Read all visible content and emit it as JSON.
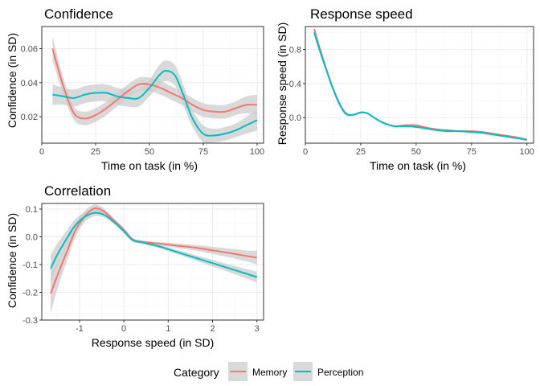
{
  "colors": {
    "memory": "#F8766D",
    "perception": "#00BFC4",
    "ribbon": "#cccccc"
  },
  "legend": {
    "title": "Category",
    "items": [
      {
        "label": "Memory",
        "color": "#F8766D"
      },
      {
        "label": "Perception",
        "color": "#00BFC4"
      }
    ],
    "position": "bottom"
  },
  "chart_data": [
    {
      "type": "line",
      "title": "Confidence",
      "xlabel": "Time on task (in %)",
      "ylabel": "Confidence (in SD)",
      "xlim": [
        0,
        103
      ],
      "ylim": [
        0.0045,
        0.073
      ],
      "xticks": [
        0,
        25,
        50,
        75,
        100
      ],
      "xtick_labels": [
        "0",
        "25",
        "50",
        "75",
        "100"
      ],
      "yticks": [
        0.02,
        0.04,
        0.06
      ],
      "ytick_labels": [
        "0.02",
        "0.04",
        "0.06"
      ],
      "grid": true,
      "series": [
        {
          "name": "Memory",
          "x": [
            5,
            10,
            15,
            20,
            25,
            30,
            35,
            40,
            45,
            50,
            55,
            60,
            65,
            70,
            75,
            80,
            85,
            90,
            95,
            100
          ],
          "y": [
            0.06,
            0.038,
            0.022,
            0.019,
            0.021,
            0.025,
            0.03,
            0.035,
            0.039,
            0.039,
            0.037,
            0.034,
            0.031,
            0.027,
            0.024,
            0.023,
            0.023,
            0.025,
            0.027,
            0.027
          ],
          "ci_half": [
            0.007,
            0.005,
            0.004,
            0.004,
            0.004,
            0.004,
            0.004,
            0.004,
            0.004,
            0.004,
            0.004,
            0.004,
            0.004,
            0.004,
            0.004,
            0.004,
            0.004,
            0.004,
            0.005,
            0.006
          ]
        },
        {
          "name": "Perception",
          "x": [
            5,
            10,
            15,
            20,
            25,
            30,
            35,
            40,
            45,
            50,
            55,
            58,
            62,
            66,
            70,
            75,
            80,
            85,
            90,
            95,
            100
          ],
          "y": [
            0.033,
            0.032,
            0.031,
            0.033,
            0.034,
            0.034,
            0.032,
            0.031,
            0.031,
            0.037,
            0.045,
            0.047,
            0.044,
            0.032,
            0.019,
            0.01,
            0.009,
            0.01,
            0.012,
            0.015,
            0.018
          ],
          "ci_half": [
            0.006,
            0.005,
            0.005,
            0.005,
            0.005,
            0.005,
            0.005,
            0.005,
            0.005,
            0.005,
            0.006,
            0.006,
            0.006,
            0.006,
            0.005,
            0.005,
            0.004,
            0.004,
            0.004,
            0.005,
            0.006
          ]
        }
      ]
    },
    {
      "type": "line",
      "title": "Response speed",
      "xlabel": "Time on task (in %)",
      "ylabel": "Response speed (in SD)",
      "xlim": [
        0,
        103
      ],
      "ylim": [
        -0.3,
        1.07
      ],
      "xticks": [
        0,
        25,
        50,
        75,
        100
      ],
      "xtick_labels": [
        "0",
        "25",
        "50",
        "75",
        "100"
      ],
      "yticks": [
        0.0,
        0.4,
        0.8
      ],
      "ytick_labels": [
        "0.0",
        "0.4",
        "0.8"
      ],
      "grid": true,
      "series": [
        {
          "name": "Memory",
          "x": [
            4,
            6,
            8,
            10,
            12,
            15,
            18,
            21,
            25,
            28,
            31,
            35,
            40,
            45,
            50,
            55,
            60,
            65,
            70,
            75,
            80,
            85,
            90,
            95,
            100
          ],
          "y": [
            1.04,
            0.86,
            0.69,
            0.53,
            0.38,
            0.19,
            0.06,
            0.03,
            0.06,
            0.05,
            0.0,
            -0.06,
            -0.1,
            -0.09,
            -0.09,
            -0.12,
            -0.14,
            -0.15,
            -0.16,
            -0.16,
            -0.17,
            -0.19,
            -0.21,
            -0.23,
            -0.26
          ],
          "ci_half": [
            0.02,
            0.02,
            0.015,
            0.015,
            0.01,
            0.01,
            0.01,
            0.01,
            0.01,
            0.01,
            0.01,
            0.01,
            0.01,
            0.01,
            0.01,
            0.01,
            0.01,
            0.01,
            0.01,
            0.01,
            0.01,
            0.01,
            0.01,
            0.01,
            0.015
          ]
        },
        {
          "name": "Perception",
          "x": [
            4,
            6,
            8,
            10,
            12,
            15,
            18,
            21,
            25,
            28,
            31,
            35,
            40,
            45,
            50,
            55,
            60,
            65,
            70,
            75,
            80,
            85,
            90,
            95,
            100
          ],
          "y": [
            1.0,
            0.83,
            0.67,
            0.52,
            0.37,
            0.18,
            0.05,
            0.03,
            0.06,
            0.05,
            0.0,
            -0.06,
            -0.1,
            -0.1,
            -0.11,
            -0.13,
            -0.15,
            -0.16,
            -0.16,
            -0.17,
            -0.18,
            -0.2,
            -0.22,
            -0.24,
            -0.26
          ],
          "ci_half": [
            0.02,
            0.02,
            0.015,
            0.015,
            0.01,
            0.01,
            0.01,
            0.01,
            0.01,
            0.01,
            0.01,
            0.01,
            0.01,
            0.01,
            0.01,
            0.01,
            0.01,
            0.01,
            0.01,
            0.01,
            0.01,
            0.01,
            0.01,
            0.01,
            0.015
          ]
        }
      ]
    },
    {
      "type": "line",
      "title": "Correlation",
      "xlabel": "Response speed (in SD)",
      "ylabel": "Confidence (in SD)",
      "xlim": [
        -1.85,
        3.15
      ],
      "ylim": [
        -0.3,
        0.12
      ],
      "xticks": [
        -1,
        0,
        1,
        2,
        3
      ],
      "xtick_labels": [
        "-1",
        "0",
        "1",
        "2",
        "3"
      ],
      "yticks": [
        -0.3,
        -0.2,
        -0.1,
        0.0,
        0.1
      ],
      "ytick_labels": [
        "-0.3",
        "-0.2",
        "-0.1",
        "0.0",
        "0.1"
      ],
      "grid": true,
      "series": [
        {
          "name": "Memory",
          "x": [
            -1.65,
            -1.5,
            -1.3,
            -1.1,
            -0.9,
            -0.7,
            -0.55,
            -0.4,
            -0.2,
            0.0,
            0.2,
            0.4,
            0.8,
            1.2,
            1.6,
            2.0,
            2.4,
            2.8,
            3.0
          ],
          "y": [
            -0.205,
            -0.14,
            -0.06,
            0.02,
            0.07,
            0.1,
            0.1,
            0.085,
            0.055,
            0.025,
            -0.01,
            -0.018,
            -0.025,
            -0.032,
            -0.039,
            -0.049,
            -0.059,
            -0.07,
            -0.075
          ],
          "ci_half": [
            0.07,
            0.05,
            0.035,
            0.025,
            0.02,
            0.015,
            0.012,
            0.01,
            0.008,
            0.007,
            0.006,
            0.005,
            0.006,
            0.008,
            0.01,
            0.013,
            0.016,
            0.02,
            0.025
          ]
        },
        {
          "name": "Perception",
          "x": [
            -1.65,
            -1.5,
            -1.3,
            -1.1,
            -0.9,
            -0.7,
            -0.55,
            -0.4,
            -0.2,
            0.0,
            0.2,
            0.4,
            0.8,
            1.2,
            1.6,
            2.0,
            2.4,
            2.8,
            3.0
          ],
          "y": [
            -0.115,
            -0.065,
            -0.01,
            0.04,
            0.07,
            0.085,
            0.085,
            0.075,
            0.05,
            0.02,
            -0.012,
            -0.02,
            -0.035,
            -0.055,
            -0.075,
            -0.095,
            -0.115,
            -0.135,
            -0.145
          ],
          "ci_half": [
            0.05,
            0.04,
            0.03,
            0.022,
            0.017,
            0.013,
            0.011,
            0.009,
            0.008,
            0.007,
            0.006,
            0.005,
            0.006,
            0.008,
            0.01,
            0.012,
            0.014,
            0.017,
            0.02
          ]
        }
      ]
    }
  ]
}
